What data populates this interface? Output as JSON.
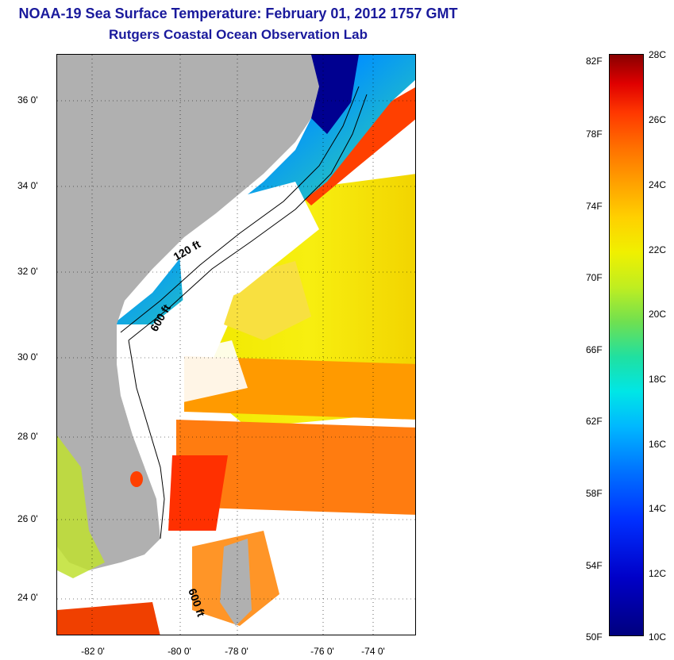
{
  "title": {
    "line1": "NOAA-19 Sea Surface Temperature:  February 01, 2012 1757 GMT",
    "line2": "Rutgers Coastal Ocean Observation Lab"
  },
  "map": {
    "lat_labels": [
      "36 0'",
      "34 0'",
      "32 0'",
      "30 0'",
      "28 0'",
      "26 0'",
      "24 0'"
    ],
    "lon_labels": [
      "-82 0'",
      "-80 0'",
      "-78 0'",
      "-76 0'",
      "-74 0'"
    ],
    "contour_labels": [
      "120 ft",
      "600 ft",
      "600 ft"
    ],
    "colors": {
      "land": "#b0b0b0",
      "cloud": "#ffffff",
      "cold_coast": "#0020c0",
      "warm_gulfstream": "#ff5000",
      "mid_ocean": "#f2f000"
    }
  },
  "colorbar": {
    "fahrenheit": [
      "82F",
      "78F",
      "74F",
      "70F",
      "66F",
      "62F",
      "58F",
      "54F",
      "50F"
    ],
    "celsius": [
      "28C",
      "26C",
      "24C",
      "22C",
      "20C",
      "18C",
      "16C",
      "14C",
      "12C",
      "10C"
    ],
    "range_f": [
      50,
      82
    ],
    "range_c": [
      10,
      28
    ]
  }
}
